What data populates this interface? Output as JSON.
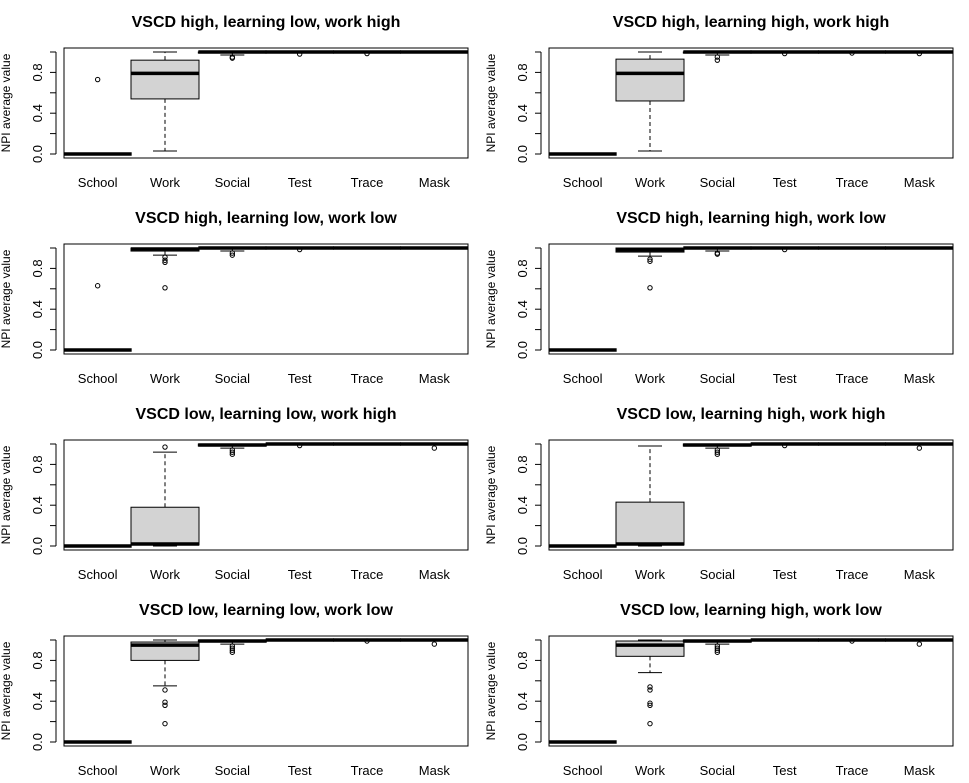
{
  "chart_data": [
    {
      "type": "boxplot",
      "title": "VSCD high, learning low, work high",
      "ylabel": "NPI average value",
      "xlabel": "",
      "ylim": [
        0,
        1
      ],
      "yticks": [
        0.0,
        0.4,
        0.8
      ],
      "ytick_labels": [
        "0.0",
        "0.4",
        "0.8"
      ],
      "categories": [
        "School",
        "Work",
        "Social",
        "Test",
        "Trace",
        "Mask"
      ],
      "boxes": [
        {
          "min": 0,
          "q1": 0,
          "median": 0,
          "q3": 0,
          "max": 0,
          "outliers": [
            0.73
          ]
        },
        {
          "min": 0.03,
          "q1": 0.54,
          "median": 0.79,
          "q3": 0.92,
          "max": 1.0,
          "outliers": []
        },
        {
          "min": 0.97,
          "q1": 0.99,
          "median": 1.0,
          "q3": 1.0,
          "max": 1.0,
          "outliers": [
            0.95,
            0.94
          ]
        },
        {
          "min": 0.99,
          "q1": 1.0,
          "median": 1.0,
          "q3": 1.0,
          "max": 1.0,
          "outliers": [
            0.98
          ]
        },
        {
          "min": 0.99,
          "q1": 1.0,
          "median": 1.0,
          "q3": 1.0,
          "max": 1.0,
          "outliers": [
            0.985
          ]
        },
        {
          "min": 1.0,
          "q1": 1.0,
          "median": 1.0,
          "q3": 1.0,
          "max": 1.0,
          "outliers": []
        }
      ]
    },
    {
      "type": "boxplot",
      "title": "VSCD high, learning high, work high",
      "ylabel": "NPI average value",
      "xlabel": "",
      "ylim": [
        0,
        1
      ],
      "yticks": [
        0.0,
        0.4,
        0.8
      ],
      "ytick_labels": [
        "0.0",
        "0.4",
        "0.8"
      ],
      "categories": [
        "School",
        "Work",
        "Social",
        "Test",
        "Trace",
        "Mask"
      ],
      "boxes": [
        {
          "min": 0,
          "q1": 0,
          "median": 0,
          "q3": 0,
          "max": 0,
          "outliers": []
        },
        {
          "min": 0.03,
          "q1": 0.52,
          "median": 0.79,
          "q3": 0.93,
          "max": 1.0,
          "outliers": []
        },
        {
          "min": 0.97,
          "q1": 0.99,
          "median": 1.0,
          "q3": 1.0,
          "max": 1.0,
          "outliers": [
            0.95,
            0.92
          ]
        },
        {
          "min": 0.99,
          "q1": 1.0,
          "median": 1.0,
          "q3": 1.0,
          "max": 1.0,
          "outliers": [
            0.985
          ]
        },
        {
          "min": 0.99,
          "q1": 1.0,
          "median": 1.0,
          "q3": 1.0,
          "max": 1.0,
          "outliers": [
            0.99
          ]
        },
        {
          "min": 0.99,
          "q1": 1.0,
          "median": 1.0,
          "q3": 1.0,
          "max": 1.0,
          "outliers": [
            0.985
          ]
        }
      ]
    },
    {
      "type": "boxplot",
      "title": "VSCD high, learning low, work low",
      "ylabel": "NPI average value",
      "xlabel": "",
      "ylim": [
        0,
        1
      ],
      "yticks": [
        0.0,
        0.4,
        0.8
      ],
      "ytick_labels": [
        "0.0",
        "0.4",
        "0.8"
      ],
      "categories": [
        "School",
        "Work",
        "Social",
        "Test",
        "Trace",
        "Mask"
      ],
      "boxes": [
        {
          "min": 0,
          "q1": 0,
          "median": 0,
          "q3": 0,
          "max": 0,
          "outliers": [
            0.63
          ]
        },
        {
          "min": 0.93,
          "q1": 0.97,
          "median": 0.99,
          "q3": 1.0,
          "max": 1.0,
          "outliers": [
            0.91,
            0.88,
            0.86,
            0.61
          ]
        },
        {
          "min": 0.97,
          "q1": 0.99,
          "median": 1.0,
          "q3": 1.0,
          "max": 1.0,
          "outliers": [
            0.95,
            0.93
          ]
        },
        {
          "min": 0.99,
          "q1": 1.0,
          "median": 1.0,
          "q3": 1.0,
          "max": 1.0,
          "outliers": [
            0.985
          ]
        },
        {
          "min": 1.0,
          "q1": 1.0,
          "median": 1.0,
          "q3": 1.0,
          "max": 1.0,
          "outliers": []
        },
        {
          "min": 1.0,
          "q1": 1.0,
          "median": 1.0,
          "q3": 1.0,
          "max": 1.0,
          "outliers": []
        }
      ]
    },
    {
      "type": "boxplot",
      "title": "VSCD high, learning high, work low",
      "ylabel": "NPI average value",
      "xlabel": "",
      "ylim": [
        0,
        1
      ],
      "yticks": [
        0.0,
        0.4,
        0.8
      ],
      "ytick_labels": [
        "0.0",
        "0.4",
        "0.8"
      ],
      "categories": [
        "School",
        "Work",
        "Social",
        "Test",
        "Trace",
        "Mask"
      ],
      "boxes": [
        {
          "min": 0,
          "q1": 0,
          "median": 0,
          "q3": 0,
          "max": 0,
          "outliers": []
        },
        {
          "min": 0.92,
          "q1": 0.96,
          "median": 0.98,
          "q3": 1.0,
          "max": 1.0,
          "outliers": [
            0.89,
            0.87,
            0.61
          ]
        },
        {
          "min": 0.97,
          "q1": 0.99,
          "median": 1.0,
          "q3": 1.0,
          "max": 1.0,
          "outliers": [
            0.95,
            0.94
          ]
        },
        {
          "min": 0.99,
          "q1": 1.0,
          "median": 1.0,
          "q3": 1.0,
          "max": 1.0,
          "outliers": [
            0.985
          ]
        },
        {
          "min": 1.0,
          "q1": 1.0,
          "median": 1.0,
          "q3": 1.0,
          "max": 1.0,
          "outliers": []
        },
        {
          "min": 1.0,
          "q1": 1.0,
          "median": 1.0,
          "q3": 1.0,
          "max": 1.0,
          "outliers": []
        }
      ]
    },
    {
      "type": "boxplot",
      "title": "VSCD low, learning low, work high",
      "ylabel": "NPI average value",
      "xlabel": "",
      "ylim": [
        0,
        1
      ],
      "yticks": [
        0.0,
        0.4,
        0.8
      ],
      "ytick_labels": [
        "0.0",
        "0.4",
        "0.8"
      ],
      "categories": [
        "School",
        "Work",
        "Social",
        "Test",
        "Trace",
        "Mask"
      ],
      "boxes": [
        {
          "min": 0,
          "q1": 0,
          "median": 0,
          "q3": 0,
          "max": 0,
          "outliers": []
        },
        {
          "min": 0.0,
          "q1": 0.01,
          "median": 0.02,
          "q3": 0.38,
          "max": 0.92,
          "outliers": [
            0.97
          ]
        },
        {
          "min": 0.96,
          "q1": 0.98,
          "median": 0.99,
          "q3": 1.0,
          "max": 1.0,
          "outliers": [
            0.94,
            0.92,
            0.9
          ]
        },
        {
          "min": 0.99,
          "q1": 1.0,
          "median": 1.0,
          "q3": 1.0,
          "max": 1.0,
          "outliers": [
            0.985
          ]
        },
        {
          "min": 1.0,
          "q1": 1.0,
          "median": 1.0,
          "q3": 1.0,
          "max": 1.0,
          "outliers": []
        },
        {
          "min": 0.99,
          "q1": 1.0,
          "median": 1.0,
          "q3": 1.0,
          "max": 1.0,
          "outliers": [
            0.96
          ]
        }
      ]
    },
    {
      "type": "boxplot",
      "title": "VSCD low, learning high, work high",
      "ylabel": "NPI average value",
      "xlabel": "",
      "ylim": [
        0,
        1
      ],
      "yticks": [
        0.0,
        0.4,
        0.8
      ],
      "ytick_labels": [
        "0.0",
        "0.4",
        "0.8"
      ],
      "categories": [
        "School",
        "Work",
        "Social",
        "Test",
        "Trace",
        "Mask"
      ],
      "boxes": [
        {
          "min": 0,
          "q1": 0,
          "median": 0,
          "q3": 0,
          "max": 0,
          "outliers": []
        },
        {
          "min": 0.0,
          "q1": 0.01,
          "median": 0.02,
          "q3": 0.43,
          "max": 0.98,
          "outliers": []
        },
        {
          "min": 0.96,
          "q1": 0.98,
          "median": 0.99,
          "q3": 1.0,
          "max": 1.0,
          "outliers": [
            0.94,
            0.92,
            0.9
          ]
        },
        {
          "min": 0.99,
          "q1": 1.0,
          "median": 1.0,
          "q3": 1.0,
          "max": 1.0,
          "outliers": [
            0.985
          ]
        },
        {
          "min": 1.0,
          "q1": 1.0,
          "median": 1.0,
          "q3": 1.0,
          "max": 1.0,
          "outliers": []
        },
        {
          "min": 0.99,
          "q1": 1.0,
          "median": 1.0,
          "q3": 1.0,
          "max": 1.0,
          "outliers": [
            0.96
          ]
        }
      ]
    },
    {
      "type": "boxplot",
      "title": "VSCD low, learning low, work low",
      "ylabel": "NPI average value",
      "xlabel": "",
      "ylim": [
        0,
        1
      ],
      "yticks": [
        0.0,
        0.4,
        0.8
      ],
      "ytick_labels": [
        "0.0",
        "0.4",
        "0.8"
      ],
      "categories": [
        "School",
        "Work",
        "Social",
        "Test",
        "Trace",
        "Mask"
      ],
      "boxes": [
        {
          "min": 0,
          "q1": 0,
          "median": 0,
          "q3": 0,
          "max": 0,
          "outliers": []
        },
        {
          "min": 0.55,
          "q1": 0.8,
          "median": 0.95,
          "q3": 0.98,
          "max": 1.0,
          "outliers": [
            0.51,
            0.39,
            0.36,
            0.18
          ]
        },
        {
          "min": 0.96,
          "q1": 0.98,
          "median": 0.99,
          "q3": 1.0,
          "max": 1.0,
          "outliers": [
            0.94,
            0.92,
            0.9,
            0.88
          ]
        },
        {
          "min": 1.0,
          "q1": 1.0,
          "median": 1.0,
          "q3": 1.0,
          "max": 1.0,
          "outliers": []
        },
        {
          "min": 0.99,
          "q1": 1.0,
          "median": 1.0,
          "q3": 1.0,
          "max": 1.0,
          "outliers": [
            0.99
          ]
        },
        {
          "min": 0.99,
          "q1": 1.0,
          "median": 1.0,
          "q3": 1.0,
          "max": 1.0,
          "outliers": [
            0.96
          ]
        }
      ]
    },
    {
      "type": "boxplot",
      "title": "VSCD low, learning high, work low",
      "ylabel": "NPI average value",
      "xlabel": "",
      "ylim": [
        0,
        1
      ],
      "yticks": [
        0.0,
        0.4,
        0.8
      ],
      "ytick_labels": [
        "0.0",
        "0.4",
        "0.8"
      ],
      "categories": [
        "School",
        "Work",
        "Social",
        "Test",
        "Trace",
        "Mask"
      ],
      "boxes": [
        {
          "min": 0,
          "q1": 0,
          "median": 0,
          "q3": 0,
          "max": 0,
          "outliers": []
        },
        {
          "min": 0.68,
          "q1": 0.84,
          "median": 0.95,
          "q3": 0.99,
          "max": 1.0,
          "outliers": [
            0.54,
            0.51,
            0.38,
            0.36,
            0.18
          ]
        },
        {
          "min": 0.96,
          "q1": 0.98,
          "median": 0.99,
          "q3": 1.0,
          "max": 1.0,
          "outliers": [
            0.94,
            0.92,
            0.9,
            0.88
          ]
        },
        {
          "min": 1.0,
          "q1": 1.0,
          "median": 1.0,
          "q3": 1.0,
          "max": 1.0,
          "outliers": []
        },
        {
          "min": 0.99,
          "q1": 1.0,
          "median": 1.0,
          "q3": 1.0,
          "max": 1.0,
          "outliers": [
            0.99
          ]
        },
        {
          "min": 0.99,
          "q1": 1.0,
          "median": 1.0,
          "q3": 1.0,
          "max": 1.0,
          "outliers": [
            0.96
          ]
        }
      ]
    }
  ]
}
